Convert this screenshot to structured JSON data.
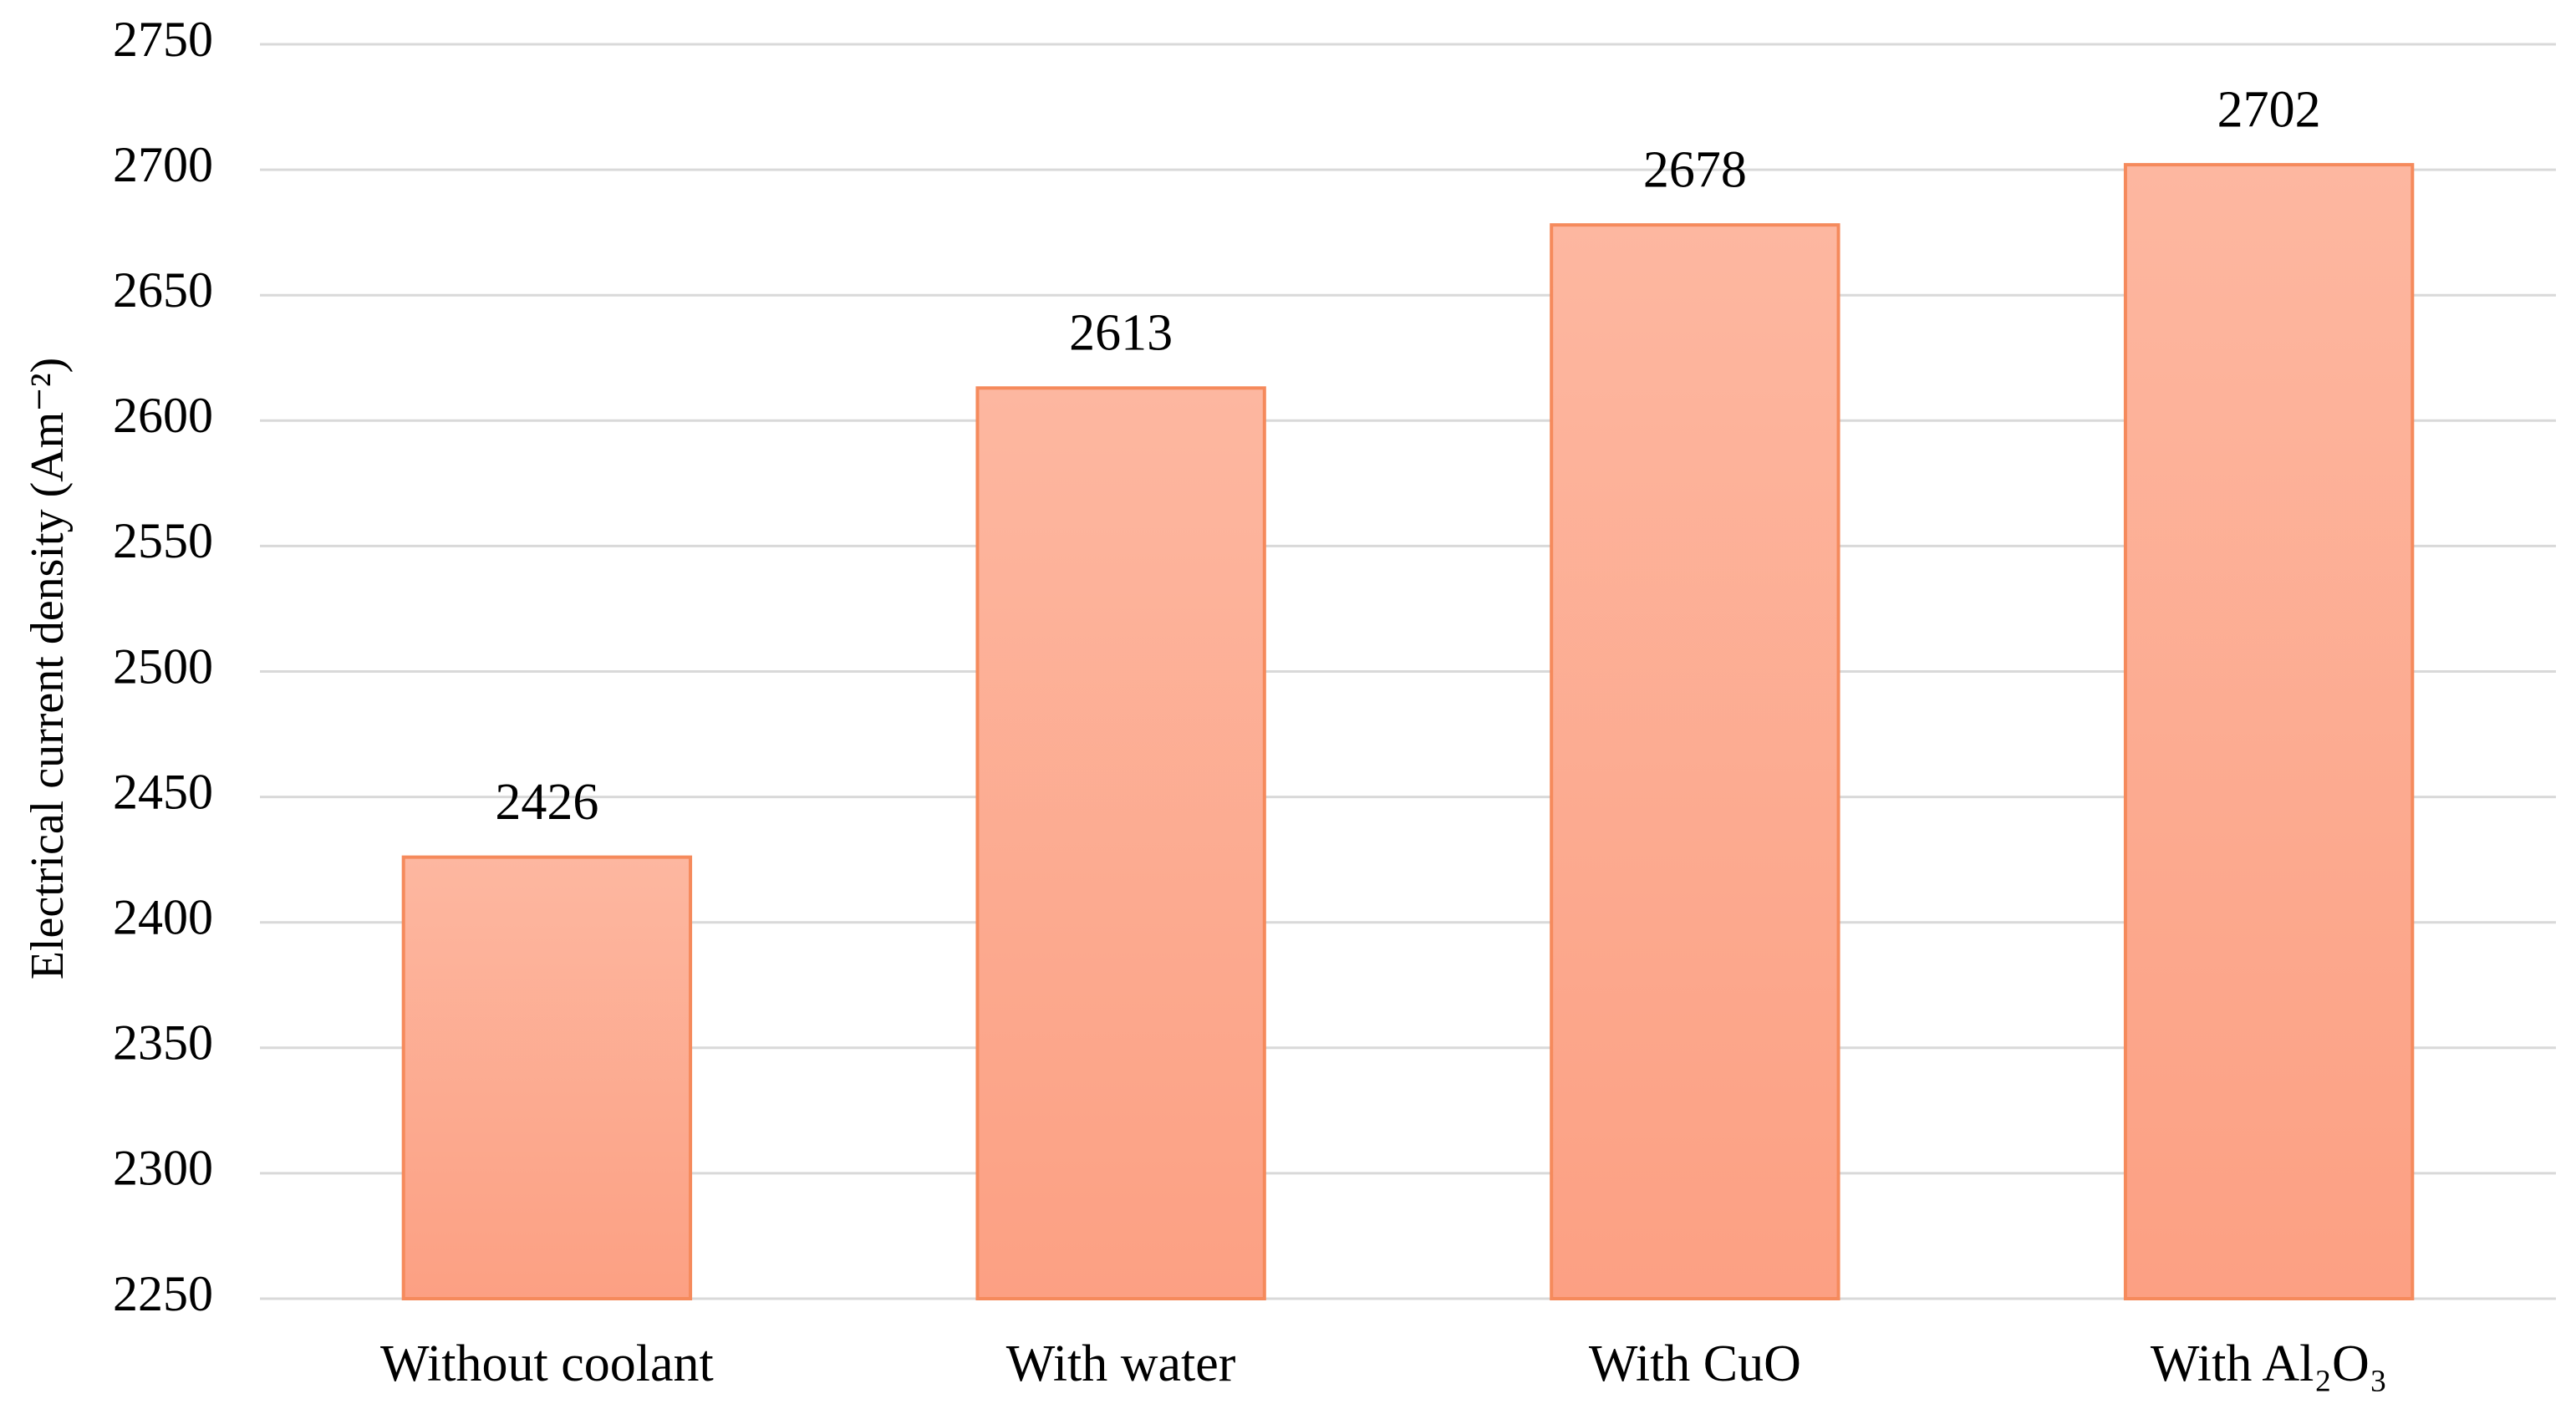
{
  "chart_data": {
    "type": "bar",
    "y_label": "Electrical current density (Am⁻²)",
    "categories": [
      "Without coolant",
      "With water",
      "With CuO",
      "With Al₂O₃"
    ],
    "values": [
      2426,
      2613,
      2678,
      2702
    ],
    "color": "#fdaa8e",
    "ylim": [
      2250,
      2750
    ],
    "yticks": [
      2250,
      2300,
      2350,
      2400,
      2450,
      2500,
      2550,
      2600,
      2650,
      2700,
      2750
    ],
    "grid": true
  }
}
